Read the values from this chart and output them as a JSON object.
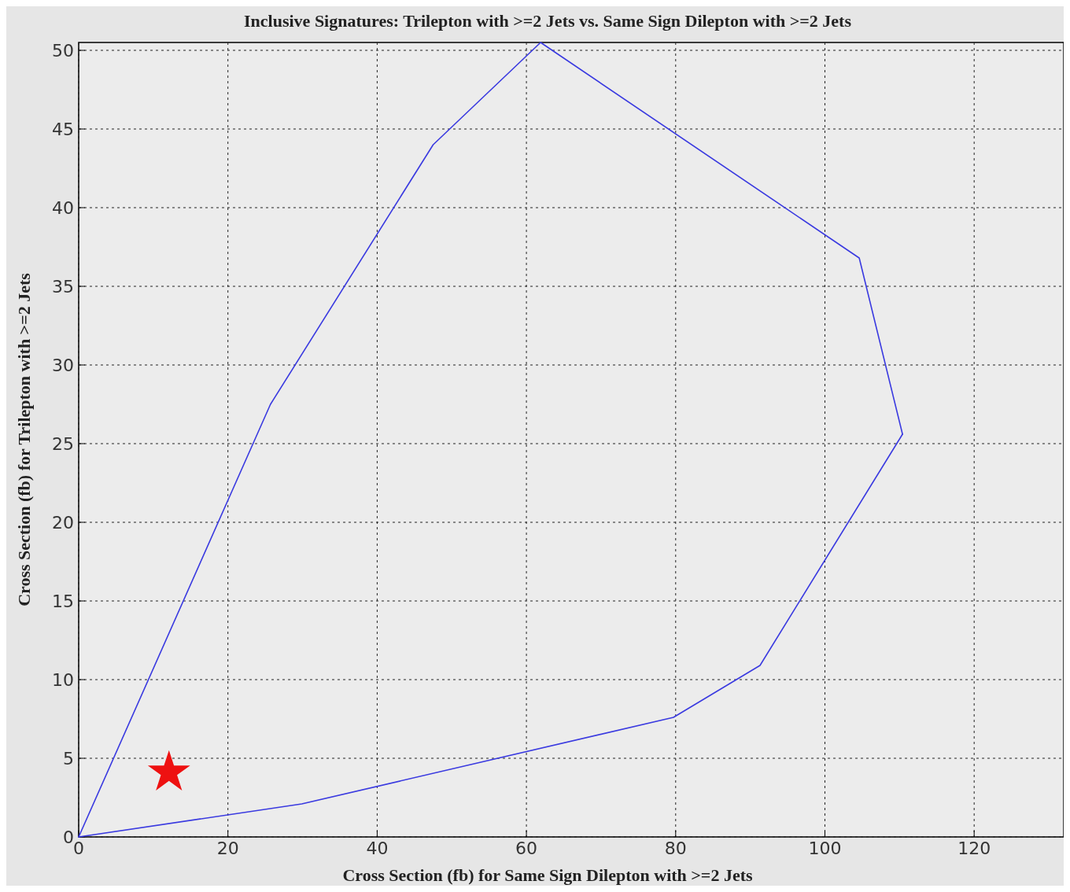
{
  "chart_data": {
    "type": "line",
    "title": "Inclusive Signatures: Trilepton with >=2 Jets vs. Same Sign Dilepton with >=2 Jets",
    "xlabel": "Cross Section (fb) for Same Sign Dilepton with >=2 Jets",
    "ylabel": "Cross Section (fb) for Trilepton with >=2 Jets",
    "xlim": [
      0,
      132
    ],
    "xticks": [
      0,
      20,
      40,
      60,
      80,
      100,
      120
    ],
    "ylim": [
      0,
      50.5
    ],
    "yticks": [
      0,
      5,
      10,
      15,
      20,
      25,
      30,
      35,
      40,
      45,
      50
    ],
    "grid": true,
    "series": [
      {
        "color": "#3a3ae0",
        "marker": "none",
        "line_style": "solid",
        "x": [
          0,
          25.7,
          47.5,
          61.9,
          104.6,
          110.4
        ],
        "values": [
          0,
          27.5,
          44,
          50.5,
          36.8,
          25.6
        ]
      },
      {
        "color": "#3a3ae0",
        "marker": "none",
        "line_style": "solid",
        "x": [
          0,
          29.9,
          79.7,
          91.3,
          110.4
        ],
        "values": [
          0,
          2.1,
          7.6,
          10.9,
          25.6
        ]
      },
      {
        "type": "scatter",
        "color": "#ee1111",
        "marker": "star",
        "x": [
          12.1
        ],
        "values": [
          4.1
        ]
      }
    ]
  }
}
